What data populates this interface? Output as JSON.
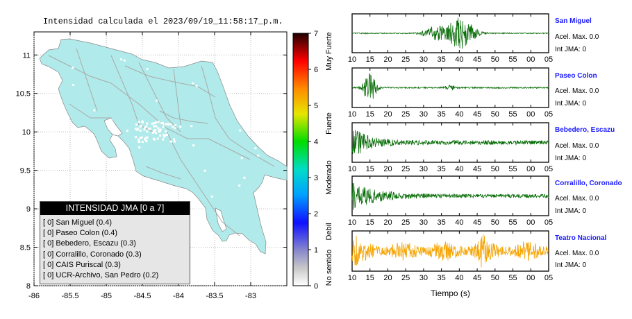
{
  "title": "Intensidad calculada el 2023/09/19_11:58:17_p.m.",
  "colors": {
    "land": "#b1eaea",
    "roads": "#a9a9a9",
    "seis_green": "#0a6e0a",
    "seis_orange": "#f5a300",
    "station_name": "#1a1aff"
  },
  "chart_data": [
    {
      "type": "map",
      "xlim": [
        -86,
        -82.5
      ],
      "ylim": [
        8,
        11.3
      ],
      "x_ticks": [
        "-86",
        "-85.5",
        "-85",
        "-84.5",
        "-84",
        "-83.5",
        "-83"
      ],
      "y_ticks": [
        "8",
        "8.5",
        "9",
        "9.5",
        "10",
        "10.5",
        "11"
      ],
      "grid": true
    },
    {
      "type": "colorbar",
      "range": [
        0,
        7
      ],
      "ticks": [
        "0",
        "1",
        "2",
        "3",
        "4",
        "5",
        "6",
        "7"
      ],
      "labels": [
        "No sentido",
        "Debil",
        "Moderado",
        "Fuerte",
        "Muy Fuerte"
      ]
    },
    {
      "type": "line",
      "xlabel": "Tiempo (s)",
      "x_ticks": [
        "10",
        "15",
        "20",
        "25",
        "30",
        "35",
        "40",
        "45",
        "50",
        "55",
        "00",
        "05"
      ],
      "series": [
        {
          "name": "San Miguel",
          "acel": "Acel. Max. 0.0",
          "int": "Int JMA: 0",
          "color": "#0a6e0a"
        },
        {
          "name": "Paseo Colon",
          "acel": "Acel. Max. 0.0",
          "int": "Int JMA: 0",
          "color": "#0a6e0a"
        },
        {
          "name": "Bebedero, Escazu",
          "acel": "Acel. Max. 0.0",
          "int": "Int JMA: 0",
          "color": "#0a6e0a"
        },
        {
          "name": "Corralillo, Coronado",
          "acel": "Acel. Max. 0.0",
          "int": "Int JMA: 0",
          "color": "#0a6e0a"
        },
        {
          "name": "Teatro Nacional",
          "acel": "Acel. Max. 0.0",
          "int": "Int JMA: 0",
          "color": "#f5a300"
        }
      ]
    }
  ],
  "legend": {
    "title": "INTENSIDAD JMA [0 a 7]",
    "items": [
      "[ 0]  San Miguel (0.4)",
      "[ 0]  Paseo Colon (0.4)",
      "[ 0]  Bebedero, Escazu (0.3)",
      "[ 0]  Corralillo, Coronado (0.3)",
      "[ 0]  CAIS Puriscal (0.3)",
      "[ 0]  UCR-Archivo, San Pedro (0.2)"
    ]
  }
}
